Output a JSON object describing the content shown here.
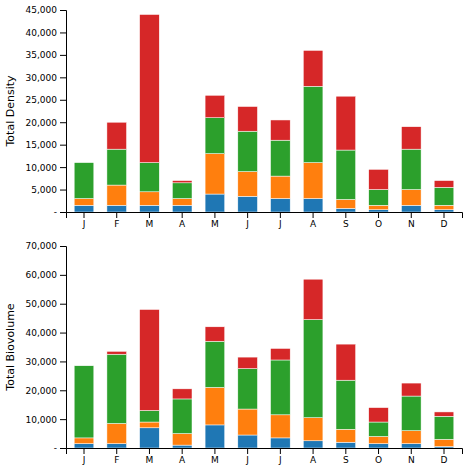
{
  "chart_data": [
    {
      "type": "bar",
      "stacked": true,
      "categories": [
        "J",
        "F",
        "M",
        "A",
        "M",
        "J",
        "J",
        "A",
        "S",
        "O",
        "N",
        "D"
      ],
      "series": [
        {
          "values": [
            1500,
            1500,
            1500,
            1500,
            4000,
            3500,
            3000,
            3000,
            800,
            500,
            1500,
            500
          ]
        },
        {
          "values": [
            1500,
            4500,
            3000,
            1500,
            9000,
            5500,
            5000,
            8000,
            2000,
            1000,
            3500,
            1000
          ]
        },
        {
          "values": [
            8000,
            8000,
            6500,
            3500,
            8000,
            9000,
            8000,
            17000,
            11000,
            3500,
            9000,
            4000
          ]
        },
        {
          "values": [
            0,
            6000,
            33000,
            500,
            5000,
            5500,
            4500,
            8000,
            12000,
            4500,
            5000,
            1500
          ]
        }
      ],
      "y_label": "Total Density",
      "ylim": [
        0,
        45000
      ],
      "yticks": [
        {
          "value": 0,
          "label": "-"
        },
        {
          "value": 5000,
          "label": "5,000"
        },
        {
          "value": 10000,
          "label": "10,000"
        },
        {
          "value": 15000,
          "label": "15,000"
        },
        {
          "value": 20000,
          "label": "20,000"
        },
        {
          "value": 25000,
          "label": "25,000"
        },
        {
          "value": 30000,
          "label": "30,000"
        },
        {
          "value": 35000,
          "label": "35,000"
        },
        {
          "value": 40000,
          "label": "40,000"
        },
        {
          "value": 45000,
          "label": "45,000"
        }
      ]
    },
    {
      "type": "bar",
      "stacked": true,
      "categories": [
        "J",
        "F",
        "M",
        "A",
        "M",
        "J",
        "J",
        "A",
        "S",
        "O",
        "N",
        "D"
      ],
      "series": [
        {
          "values": [
            1500,
            1500,
            7000,
            1000,
            8000,
            4500,
            3500,
            2500,
            2000,
            1500,
            1500,
            500
          ]
        },
        {
          "values": [
            2000,
            7000,
            2000,
            4000,
            13000,
            9000,
            8000,
            8000,
            4500,
            2500,
            4500,
            2500
          ]
        },
        {
          "values": [
            25000,
            24000,
            4000,
            12000,
            16000,
            14000,
            19000,
            34000,
            17000,
            5000,
            12000,
            8000
          ]
        },
        {
          "values": [
            0,
            1000,
            35000,
            3500,
            5000,
            4000,
            4000,
            14000,
            12500,
            5000,
            4500,
            1500
          ]
        }
      ],
      "y_label": "Total Biovolume",
      "ylim": [
        0,
        70000
      ],
      "yticks": [
        {
          "value": 0,
          "label": "-"
        },
        {
          "value": 10000,
          "label": "10,000"
        },
        {
          "value": 20000,
          "label": "20,000"
        },
        {
          "value": 30000,
          "label": "30,000"
        },
        {
          "value": 40000,
          "label": "40,000"
        },
        {
          "value": 50000,
          "label": "50,000"
        },
        {
          "value": 60000,
          "label": "60,000"
        },
        {
          "value": 70000,
          "label": "70,000"
        }
      ]
    }
  ]
}
